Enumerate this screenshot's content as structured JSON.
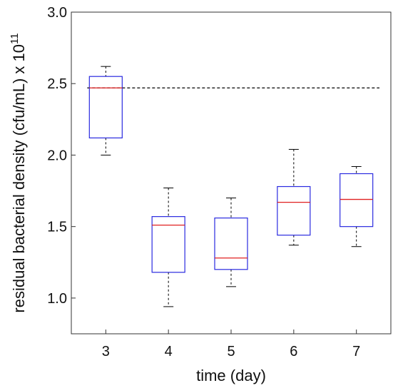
{
  "chart_data": {
    "type": "box",
    "xlabel": "time (day)",
    "ylabel_main": "residual bacterial density (cfu/mL) x 10",
    "ylabel_exponent": "11",
    "x_ticks": [
      "3",
      "4",
      "5",
      "6",
      "7"
    ],
    "y_ticks": [
      "1.0",
      "1.5",
      "2.0",
      "2.5",
      "3.0"
    ],
    "ylim": [
      0.75,
      3.0
    ],
    "xlim": [
      2.45,
      7.55
    ],
    "reference_line": {
      "y": 2.47,
      "style": "dashed",
      "color": "#000000"
    },
    "box_color": "#2a2ae0",
    "median_color": "#e02020",
    "whisker_color": "#000000",
    "boxes": [
      {
        "x": 3,
        "low": 2.0,
        "q1": 2.12,
        "median": 2.47,
        "q3": 2.55,
        "high": 2.62
      },
      {
        "x": 4,
        "low": 0.94,
        "q1": 1.18,
        "median": 1.51,
        "q3": 1.57,
        "high": 1.77
      },
      {
        "x": 5,
        "low": 1.08,
        "q1": 1.2,
        "median": 1.28,
        "q3": 1.56,
        "high": 1.7
      },
      {
        "x": 6,
        "low": 1.37,
        "q1": 1.44,
        "median": 1.67,
        "q3": 1.78,
        "high": 2.04
      },
      {
        "x": 7,
        "low": 1.36,
        "q1": 1.5,
        "median": 1.69,
        "q3": 1.87,
        "high": 1.92
      }
    ]
  }
}
